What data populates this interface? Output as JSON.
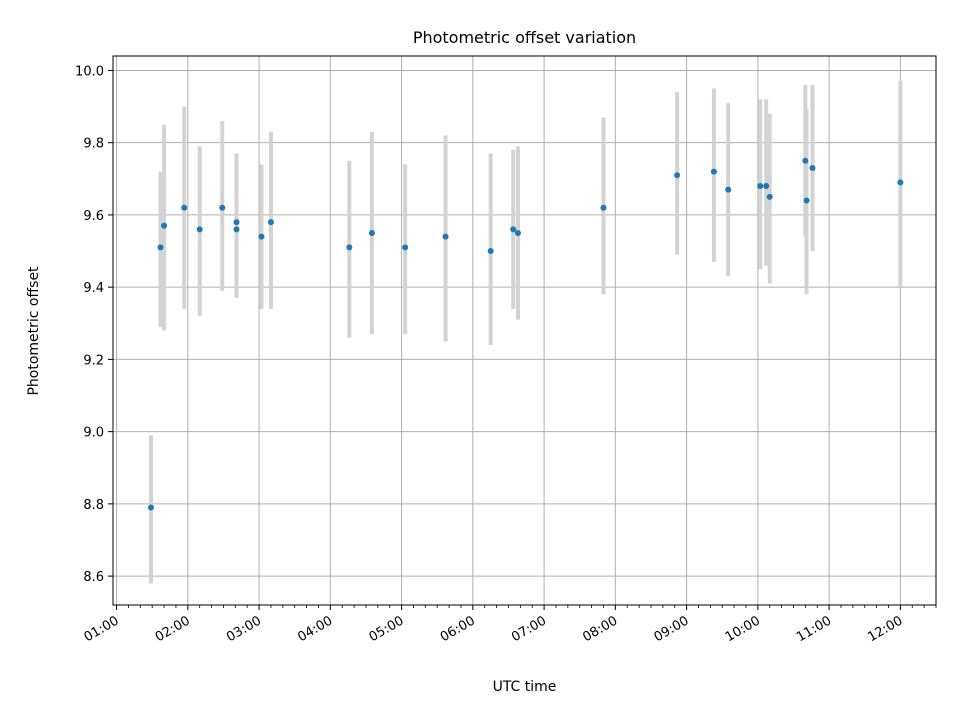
{
  "colors": {
    "point": "#1f77b4",
    "error_bar": "#d3d3d3",
    "grid": "#b0b0b0",
    "axis": "#000000"
  },
  "chart_data": {
    "type": "scatter",
    "title": "Photometric offset variation",
    "xlabel": "UTC time",
    "ylabel": "Photometric offset",
    "xlim": [
      "00:57",
      "12:30"
    ],
    "ylim": [
      8.52,
      10.04
    ],
    "grid": true,
    "x_ticks": [
      "01:00",
      "02:00",
      "03:00",
      "04:00",
      "05:00",
      "06:00",
      "07:00",
      "08:00",
      "09:00",
      "10:00",
      "11:00",
      "12:00"
    ],
    "y_ticks": [
      8.6,
      8.8,
      9.0,
      9.2,
      9.4,
      9.6,
      9.8,
      10.0
    ],
    "series": [
      {
        "points": [
          {
            "x": "01:29",
            "y": 8.79,
            "ylow": 8.58,
            "yhigh": 8.99
          },
          {
            "x": "01:37",
            "y": 9.51,
            "ylow": 9.29,
            "yhigh": 9.72
          },
          {
            "x": "01:40",
            "y": 9.57,
            "ylow": 9.28,
            "yhigh": 9.85
          },
          {
            "x": "01:57",
            "y": 9.62,
            "ylow": 9.34,
            "yhigh": 9.9
          },
          {
            "x": "02:10",
            "y": 9.56,
            "ylow": 9.32,
            "yhigh": 9.79
          },
          {
            "x": "02:29",
            "y": 9.62,
            "ylow": 9.39,
            "yhigh": 9.86
          },
          {
            "x": "02:41",
            "y": 9.58,
            "ylow": 9.37,
            "yhigh": 9.77
          },
          {
            "x": "02:41",
            "y": 9.56,
            "ylow": 9.37,
            "yhigh": 9.76
          },
          {
            "x": "03:02",
            "y": 9.54,
            "ylow": 9.34,
            "yhigh": 9.74
          },
          {
            "x": "03:10",
            "y": 9.58,
            "ylow": 9.34,
            "yhigh": 9.83
          },
          {
            "x": "04:16",
            "y": 9.51,
            "ylow": 9.26,
            "yhigh": 9.75
          },
          {
            "x": "04:35",
            "y": 9.55,
            "ylow": 9.27,
            "yhigh": 9.83
          },
          {
            "x": "05:03",
            "y": 9.51,
            "ylow": 9.27,
            "yhigh": 9.74
          },
          {
            "x": "05:37",
            "y": 9.54,
            "ylow": 9.25,
            "yhigh": 9.82
          },
          {
            "x": "06:15",
            "y": 9.5,
            "ylow": 9.24,
            "yhigh": 9.77
          },
          {
            "x": "06:34",
            "y": 9.56,
            "ylow": 9.34,
            "yhigh": 9.78
          },
          {
            "x": "06:38",
            "y": 9.55,
            "ylow": 9.31,
            "yhigh": 9.79
          },
          {
            "x": "07:50",
            "y": 9.62,
            "ylow": 9.38,
            "yhigh": 9.87
          },
          {
            "x": "08:52",
            "y": 9.71,
            "ylow": 9.49,
            "yhigh": 9.94
          },
          {
            "x": "09:23",
            "y": 9.72,
            "ylow": 9.47,
            "yhigh": 9.95
          },
          {
            "x": "09:35",
            "y": 9.67,
            "ylow": 9.43,
            "yhigh": 9.91
          },
          {
            "x": "10:02",
            "y": 9.68,
            "ylow": 9.45,
            "yhigh": 9.92
          },
          {
            "x": "10:07",
            "y": 9.68,
            "ylow": 9.46,
            "yhigh": 9.92
          },
          {
            "x": "10:10",
            "y": 9.65,
            "ylow": 9.41,
            "yhigh": 9.88
          },
          {
            "x": "10:40",
            "y": 9.75,
            "ylow": 9.54,
            "yhigh": 9.96
          },
          {
            "x": "10:41",
            "y": 9.64,
            "ylow": 9.38,
            "yhigh": 9.89
          },
          {
            "x": "10:46",
            "y": 9.73,
            "ylow": 9.5,
            "yhigh": 9.96
          },
          {
            "x": "12:00",
            "y": 9.69,
            "ylow": 9.4,
            "yhigh": 9.97
          }
        ]
      }
    ]
  }
}
